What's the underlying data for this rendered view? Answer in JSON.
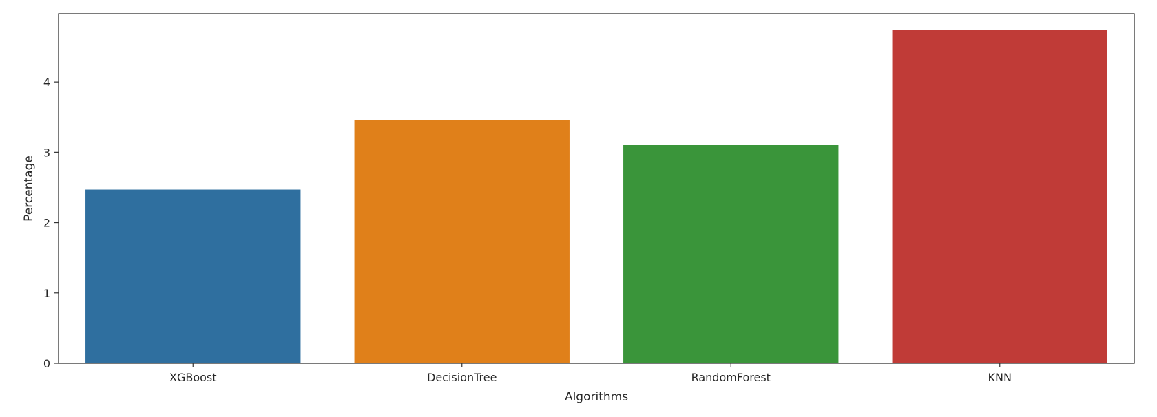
{
  "chart_data": {
    "type": "bar",
    "title": "",
    "xlabel": "Algorithms",
    "ylabel": "Percentage",
    "categories": [
      "XGBoost",
      "DecisionTree",
      "RandomForest",
      "KNN"
    ],
    "values": [
      2.47,
      3.46,
      3.11,
      4.74
    ],
    "colors": [
      "#2f6f9f",
      "#e0801a",
      "#3a953a",
      "#c03b37"
    ],
    "ylim": [
      0,
      4.97
    ],
    "yticks": [
      0,
      1,
      2,
      3,
      4
    ],
    "grid": false,
    "legend": false
  }
}
